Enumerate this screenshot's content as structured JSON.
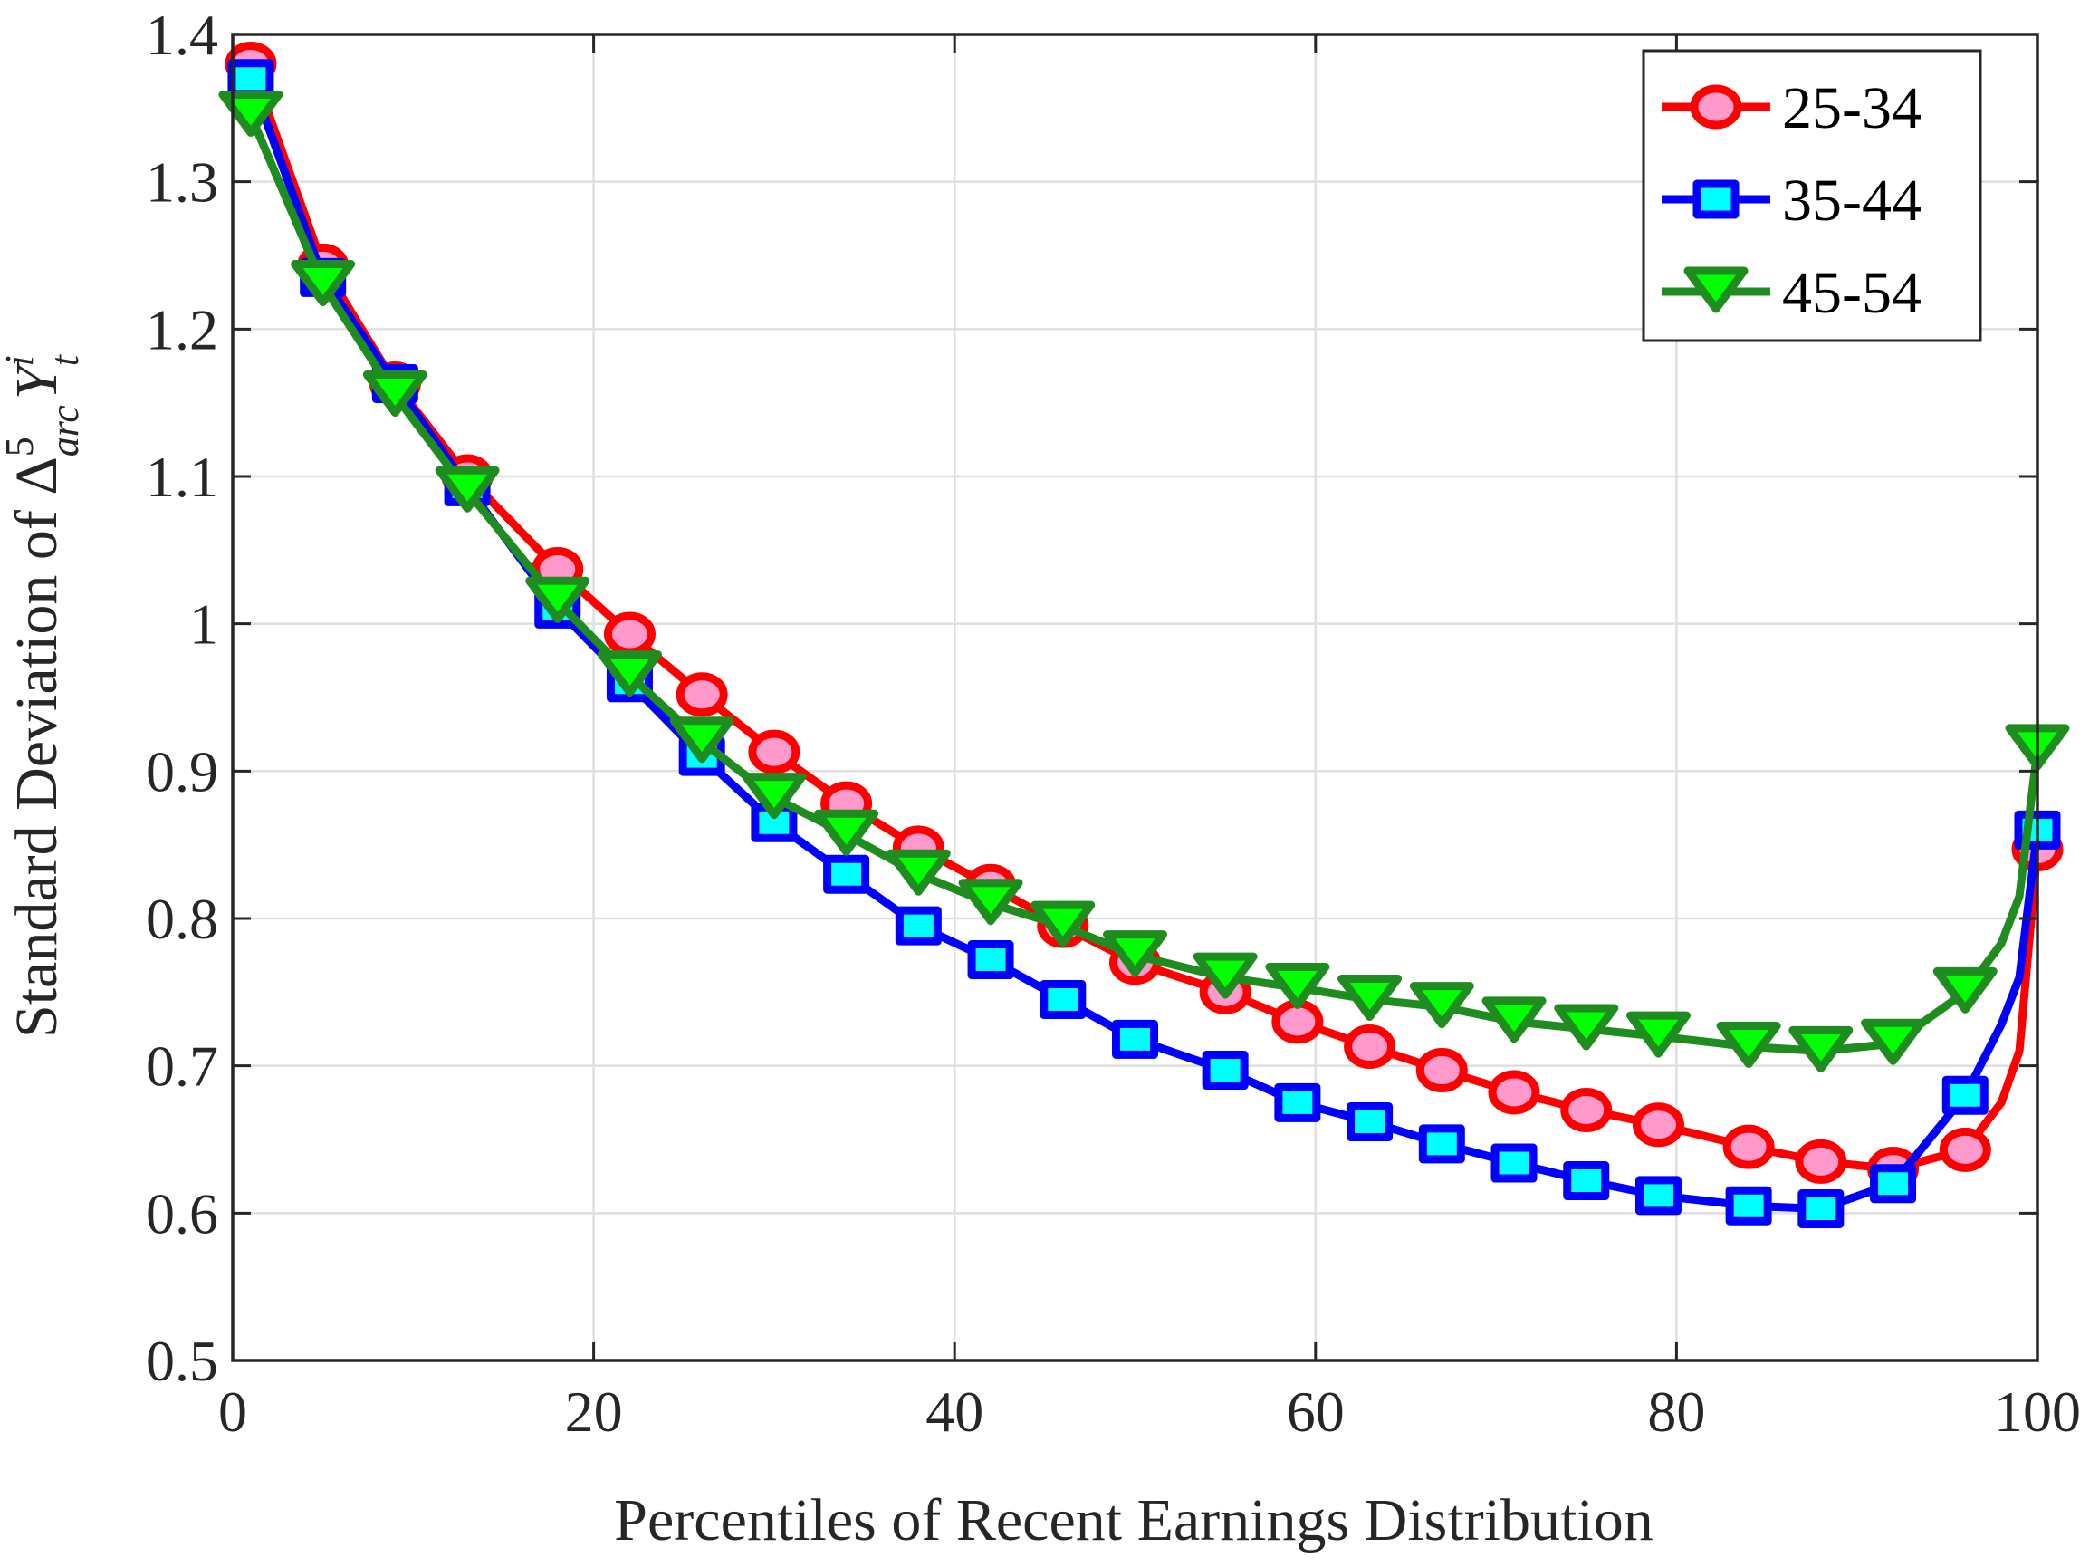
{
  "chart_data": {
    "type": "line",
    "title": "",
    "xlabel": "Percentiles of Recent Earnings Distribution",
    "ylabel": {
      "prefix": "Standard Deviation of ",
      "delta": "Δ",
      "sup5": "5",
      "sub_arc": "arc",
      "Y": "Y",
      "sup_i": "i",
      "sub_t": "t"
    },
    "xlim": [
      0,
      100
    ],
    "ylim": [
      0.5,
      1.4
    ],
    "xticks": [
      0,
      20,
      40,
      60,
      80,
      100
    ],
    "yticks": [
      0.5,
      0.6,
      0.7,
      0.8,
      0.9,
      1,
      1.1,
      1.2,
      1.3,
      1.4
    ],
    "ytick_labels": [
      "0.5",
      "0.6",
      "0.7",
      "0.8",
      "0.9",
      "1",
      "1.1",
      "1.2",
      "1.3",
      "1.4"
    ],
    "grid": true,
    "legend_position": "top-right",
    "x": [
      1,
      5,
      9,
      13,
      18,
      22,
      26,
      30,
      34,
      38,
      42,
      46,
      50,
      55,
      59,
      63,
      67,
      71,
      75,
      79,
      84,
      88,
      92,
      96,
      100
    ],
    "series": [
      {
        "name": "25-34",
        "marker": "circle",
        "line_color": "#ff0000",
        "fill_color": "#ff99cc",
        "values": [
          1.38,
          1.243,
          1.163,
          1.1,
          1.037,
          0.993,
          0.952,
          0.913,
          0.878,
          0.848,
          0.822,
          0.795,
          0.77,
          0.75,
          0.73,
          0.713,
          0.697,
          0.682,
          0.67,
          0.66,
          0.645,
          0.635,
          0.63,
          0.643,
          0.847
        ],
        "tail": {
          "x": [
            98,
            99
          ],
          "values": [
            0.675,
            0.71
          ]
        }
      },
      {
        "name": "35-44",
        "marker": "square",
        "line_color": "#0000ff",
        "fill_color": "#00ffff",
        "values": [
          1.37,
          1.235,
          1.163,
          1.093,
          1.01,
          0.96,
          0.91,
          0.865,
          0.83,
          0.795,
          0.772,
          0.745,
          0.718,
          0.697,
          0.675,
          0.662,
          0.647,
          0.634,
          0.622,
          0.612,
          0.605,
          0.603,
          0.62,
          0.68,
          0.86
        ],
        "tail": {
          "x": [
            98,
            99
          ],
          "values": [
            0.728,
            0.76
          ]
        }
      },
      {
        "name": "45-54",
        "marker": "triangle-down",
        "line_color": "#1e8c1e",
        "fill_color": "#00ff00",
        "values": [
          1.345,
          1.23,
          1.155,
          1.09,
          1.015,
          0.965,
          0.92,
          0.882,
          0.857,
          0.83,
          0.81,
          0.795,
          0.775,
          0.76,
          0.753,
          0.745,
          0.74,
          0.73,
          0.725,
          0.72,
          0.713,
          0.71,
          0.715,
          0.75,
          0.915
        ],
        "tail": {
          "x": [
            98,
            99
          ],
          "values": [
            0.783,
            0.815
          ]
        }
      }
    ]
  }
}
